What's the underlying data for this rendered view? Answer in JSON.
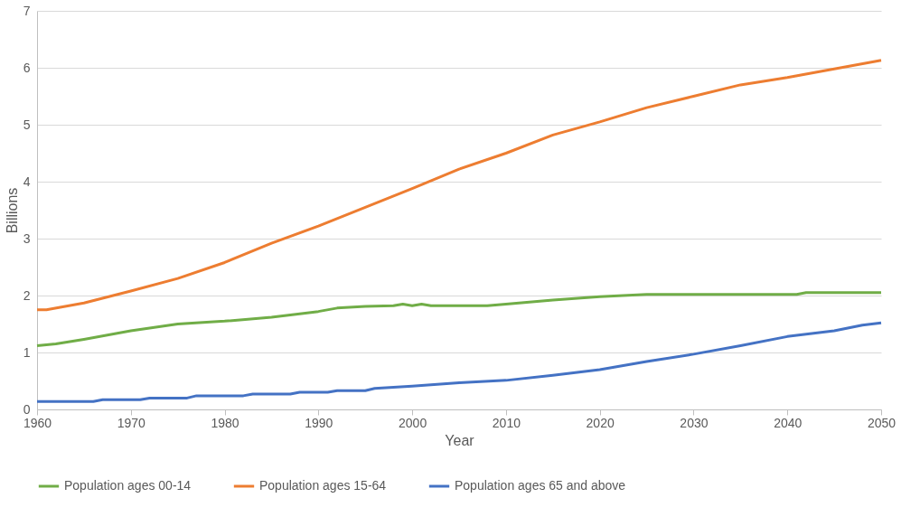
{
  "chart_data": {
    "type": "line",
    "xlabel": "Year",
    "ylabel": "Billions",
    "xlim": [
      1960,
      2050
    ],
    "xticks": [
      1960,
      1970,
      1980,
      1990,
      2000,
      2010,
      2020,
      2030,
      2040,
      2050
    ],
    "ylim": [
      0,
      7
    ],
    "yticks": [
      0,
      1,
      2,
      3,
      4,
      5,
      6,
      7
    ],
    "grid": "y",
    "legend": "bottom",
    "marker": "none",
    "line_style": "solid",
    "series": [
      {
        "name": "Population ages 00-14",
        "color": "#70ad47",
        "x": [
          1960,
          1962,
          1965,
          1970,
          1975,
          1980,
          1985,
          1990,
          1992,
          1995,
          1998,
          1999,
          2000,
          2001,
          2002,
          2008,
          2010,
          2015,
          2020,
          2025,
          2041,
          2042,
          2050
        ],
        "values": [
          1.12,
          1.15,
          1.23,
          1.38,
          1.5,
          1.55,
          1.62,
          1.72,
          1.78,
          1.81,
          1.82,
          1.85,
          1.82,
          1.85,
          1.82,
          1.82,
          1.85,
          1.92,
          1.98,
          2.02,
          2.02,
          2.05,
          2.05
        ]
      },
      {
        "name": "Population ages 15-64",
        "color": "#ed7d31",
        "x": [
          1960,
          1961,
          1965,
          1970,
          1975,
          1980,
          1985,
          1990,
          1995,
          2000,
          2005,
          2010,
          2015,
          2020,
          2025,
          2030,
          2035,
          2040,
          2045,
          2050
        ],
        "values": [
          1.75,
          1.75,
          1.87,
          2.08,
          2.3,
          2.58,
          2.92,
          3.22,
          3.55,
          3.88,
          4.22,
          4.5,
          4.82,
          5.05,
          5.3,
          5.5,
          5.7,
          5.83,
          5.98,
          6.13
        ]
      },
      {
        "name": "Population ages 65 and above",
        "color": "#4472c4",
        "x": [
          1960,
          1966,
          1967,
          1971,
          1972,
          1976,
          1977,
          1982,
          1983,
          1987,
          1988,
          1991,
          1992,
          1995,
          1996,
          2000,
          2005,
          2010,
          2015,
          2020,
          2025,
          2030,
          2035,
          2040,
          2045,
          2048,
          2050
        ],
        "values": [
          0.14,
          0.14,
          0.17,
          0.17,
          0.2,
          0.2,
          0.24,
          0.24,
          0.27,
          0.27,
          0.3,
          0.3,
          0.33,
          0.33,
          0.37,
          0.41,
          0.47,
          0.51,
          0.6,
          0.7,
          0.84,
          0.97,
          1.12,
          1.28,
          1.38,
          1.48,
          1.52
        ]
      }
    ]
  }
}
